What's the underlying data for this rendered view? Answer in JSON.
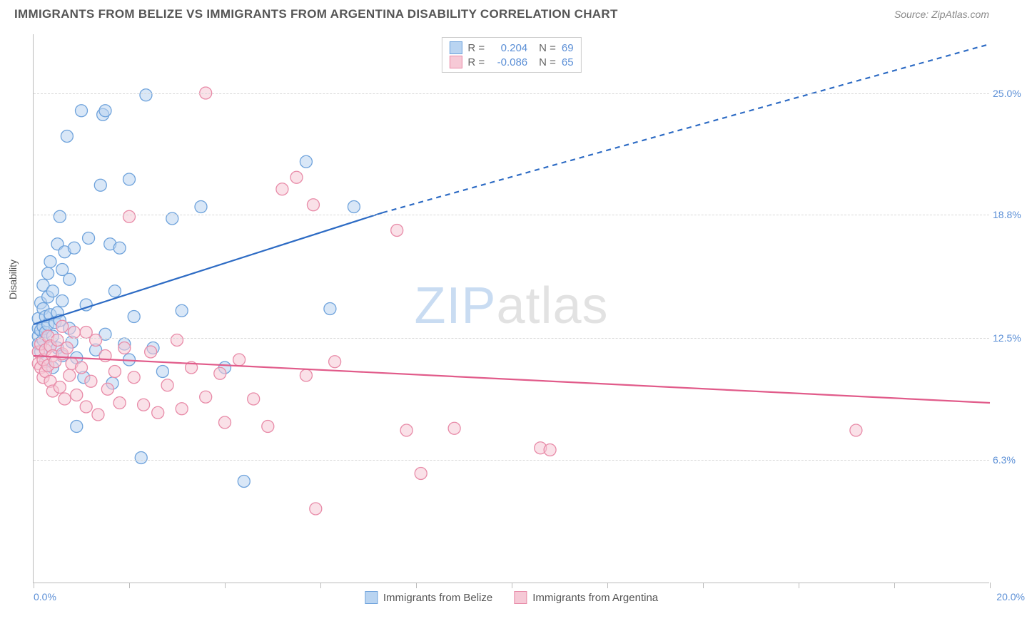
{
  "header": {
    "title": "IMMIGRANTS FROM BELIZE VS IMMIGRANTS FROM ARGENTINA DISABILITY CORRELATION CHART",
    "source_prefix": "Source: ",
    "source_name": "ZipAtlas.com"
  },
  "watermark": {
    "part1": "ZIP",
    "part2": "atlas"
  },
  "chart": {
    "type": "scatter",
    "ylabel": "Disability",
    "xlim": [
      0.0,
      20.0
    ],
    "ylim": [
      0.0,
      28.0
    ],
    "xlabel_min": "0.0%",
    "xlabel_max": "20.0%",
    "ygrid": [
      {
        "val": 6.3,
        "label": "6.3%"
      },
      {
        "val": 12.5,
        "label": "12.5%"
      },
      {
        "val": 18.8,
        "label": "18.8%"
      },
      {
        "val": 25.0,
        "label": "25.0%"
      }
    ],
    "xticks": [
      0,
      2.0,
      4.0,
      6.0,
      8.0,
      10.0,
      12.0,
      14.0,
      16.0,
      18.0,
      20.0
    ],
    "background_color": "#ffffff",
    "grid_color": "#d8d8d8",
    "axis_color": "#bbbbbb",
    "marker_radius": 8.5,
    "marker_opacity": 0.55,
    "line_width": 2.2,
    "legend_top": {
      "r_label": "R =",
      "n_label": "N =",
      "rows": [
        {
          "swatch_fill": "#b9d4f1",
          "swatch_stroke": "#6fa3dc",
          "r": "0.204",
          "n": "69"
        },
        {
          "swatch_fill": "#f6c9d6",
          "swatch_stroke": "#e88ba8",
          "r": "-0.086",
          "n": "65"
        }
      ]
    },
    "legend_bottom": [
      {
        "swatch_fill": "#b9d4f1",
        "swatch_stroke": "#6fa3dc",
        "label": "Immigrants from Belize"
      },
      {
        "swatch_fill": "#f6c9d6",
        "swatch_stroke": "#e88ba8",
        "label": "Immigrants from Argentina"
      }
    ],
    "series": [
      {
        "name": "Immigrants from Belize",
        "color_fill": "#b9d4f1",
        "color_stroke": "#6fa3dc",
        "trend": {
          "color": "#2d6bc4",
          "x1": 0.0,
          "y1": 13.2,
          "x2_solid": 7.3,
          "y2_solid": 18.9,
          "x2_dash": 20.0,
          "y2_dash": 27.5
        },
        "points": [
          [
            0.1,
            12.6
          ],
          [
            0.1,
            13.0
          ],
          [
            0.1,
            13.5
          ],
          [
            0.1,
            12.2
          ],
          [
            0.15,
            11.8
          ],
          [
            0.15,
            12.9
          ],
          [
            0.15,
            14.3
          ],
          [
            0.2,
            13.1
          ],
          [
            0.2,
            14.0
          ],
          [
            0.2,
            12.4
          ],
          [
            0.2,
            15.2
          ],
          [
            0.25,
            13.6
          ],
          [
            0.25,
            11.3
          ],
          [
            0.25,
            12.8
          ],
          [
            0.3,
            13.2
          ],
          [
            0.3,
            14.6
          ],
          [
            0.3,
            15.8
          ],
          [
            0.35,
            12.1
          ],
          [
            0.35,
            13.7
          ],
          [
            0.35,
            16.4
          ],
          [
            0.4,
            11.0
          ],
          [
            0.4,
            12.6
          ],
          [
            0.4,
            14.9
          ],
          [
            0.45,
            13.3
          ],
          [
            0.5,
            17.3
          ],
          [
            0.5,
            12.0
          ],
          [
            0.5,
            13.8
          ],
          [
            0.55,
            18.7
          ],
          [
            0.6,
            14.4
          ],
          [
            0.6,
            11.6
          ],
          [
            0.65,
            16.9
          ],
          [
            0.7,
            22.8
          ],
          [
            0.75,
            13.0
          ],
          [
            0.75,
            15.5
          ],
          [
            0.8,
            12.3
          ],
          [
            0.85,
            17.1
          ],
          [
            0.9,
            8.0
          ],
          [
            0.9,
            11.5
          ],
          [
            1.0,
            24.1
          ],
          [
            1.05,
            10.5
          ],
          [
            1.1,
            14.2
          ],
          [
            1.15,
            17.6
          ],
          [
            1.3,
            11.9
          ],
          [
            1.4,
            20.3
          ],
          [
            1.45,
            23.9
          ],
          [
            1.5,
            24.1
          ],
          [
            1.5,
            12.7
          ],
          [
            1.6,
            17.3
          ],
          [
            1.65,
            10.2
          ],
          [
            1.7,
            14.9
          ],
          [
            1.8,
            17.1
          ],
          [
            1.9,
            12.2
          ],
          [
            2.0,
            20.6
          ],
          [
            2.0,
            11.4
          ],
          [
            2.1,
            13.6
          ],
          [
            2.25,
            6.4
          ],
          [
            2.35,
            24.9
          ],
          [
            2.5,
            12.0
          ],
          [
            2.7,
            10.8
          ],
          [
            2.9,
            18.6
          ],
          [
            3.1,
            13.9
          ],
          [
            3.5,
            19.2
          ],
          [
            4.0,
            11.0
          ],
          [
            4.4,
            5.2
          ],
          [
            5.7,
            21.5
          ],
          [
            6.2,
            14.0
          ],
          [
            6.7,
            19.2
          ],
          [
            0.55,
            13.4
          ],
          [
            0.6,
            16.0
          ]
        ]
      },
      {
        "name": "Immigrants from Argentina",
        "color_fill": "#f6c9d6",
        "color_stroke": "#e88ba8",
        "trend": {
          "color": "#e15b8a",
          "x1": 0.0,
          "y1": 11.6,
          "x2_solid": 20.0,
          "y2_solid": 9.2,
          "x2_dash": 20.0,
          "y2_dash": 9.2
        },
        "points": [
          [
            0.1,
            11.2
          ],
          [
            0.1,
            11.8
          ],
          [
            0.15,
            11.0
          ],
          [
            0.15,
            12.2
          ],
          [
            0.2,
            10.5
          ],
          [
            0.2,
            11.4
          ],
          [
            0.25,
            11.9
          ],
          [
            0.25,
            10.8
          ],
          [
            0.3,
            12.6
          ],
          [
            0.3,
            11.1
          ],
          [
            0.35,
            12.1
          ],
          [
            0.35,
            10.3
          ],
          [
            0.4,
            11.6
          ],
          [
            0.4,
            9.8
          ],
          [
            0.45,
            11.3
          ],
          [
            0.5,
            12.4
          ],
          [
            0.55,
            10.0
          ],
          [
            0.6,
            11.7
          ],
          [
            0.65,
            9.4
          ],
          [
            0.7,
            12.0
          ],
          [
            0.75,
            10.6
          ],
          [
            0.8,
            11.2
          ],
          [
            0.85,
            12.8
          ],
          [
            0.9,
            9.6
          ],
          [
            1.0,
            11.0
          ],
          [
            1.1,
            9.0
          ],
          [
            1.2,
            10.3
          ],
          [
            1.3,
            12.4
          ],
          [
            1.35,
            8.6
          ],
          [
            1.5,
            11.6
          ],
          [
            1.55,
            9.9
          ],
          [
            1.7,
            10.8
          ],
          [
            1.8,
            9.2
          ],
          [
            1.9,
            12.0
          ],
          [
            2.0,
            18.7
          ],
          [
            2.1,
            10.5
          ],
          [
            2.3,
            9.1
          ],
          [
            2.45,
            11.8
          ],
          [
            2.6,
            8.7
          ],
          [
            2.8,
            10.1
          ],
          [
            3.0,
            12.4
          ],
          [
            3.1,
            8.9
          ],
          [
            3.3,
            11.0
          ],
          [
            3.6,
            25.0
          ],
          [
            3.6,
            9.5
          ],
          [
            3.9,
            10.7
          ],
          [
            4.0,
            8.2
          ],
          [
            4.3,
            11.4
          ],
          [
            4.6,
            9.4
          ],
          [
            4.9,
            8.0
          ],
          [
            5.2,
            20.1
          ],
          [
            5.5,
            20.7
          ],
          [
            5.7,
            10.6
          ],
          [
            5.85,
            19.3
          ],
          [
            5.9,
            3.8
          ],
          [
            6.3,
            11.3
          ],
          [
            7.6,
            18.0
          ],
          [
            7.8,
            7.8
          ],
          [
            8.1,
            5.6
          ],
          [
            8.8,
            7.9
          ],
          [
            10.6,
            6.9
          ],
          [
            10.8,
            6.8
          ],
          [
            17.2,
            7.8
          ],
          [
            1.1,
            12.8
          ],
          [
            0.6,
            13.1
          ]
        ]
      }
    ]
  }
}
